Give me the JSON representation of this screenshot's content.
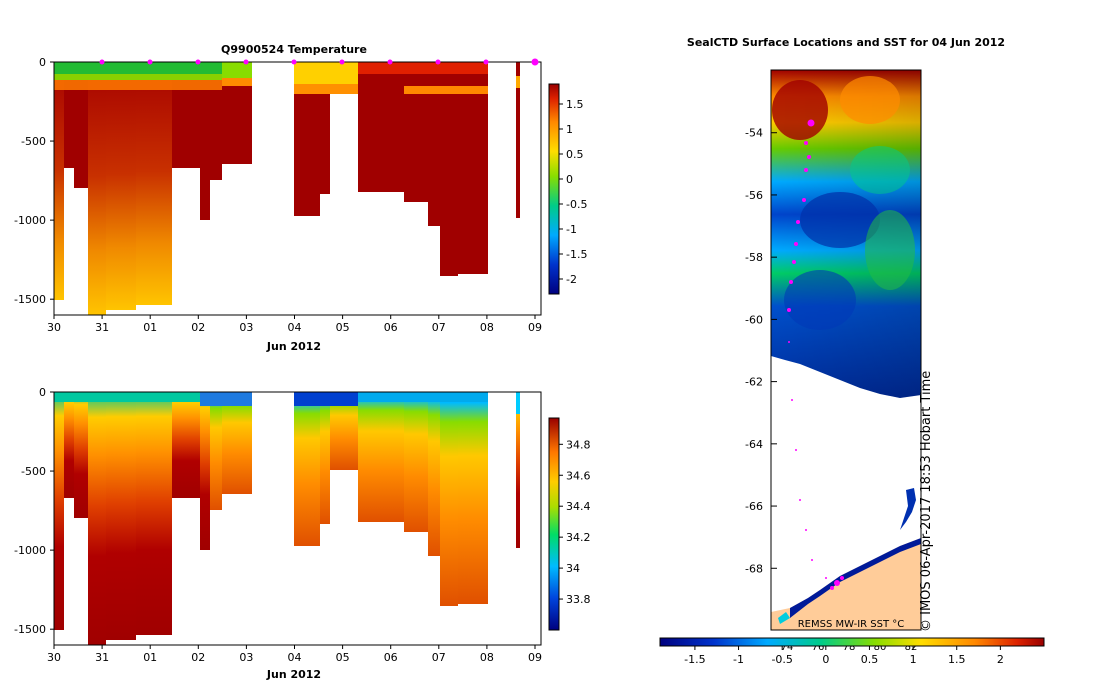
{
  "chart_data": [
    {
      "type": "heatmap",
      "title": "Q9900524  Temperature",
      "xlabel": "Jun 2012",
      "x_ticks": [
        "30",
        "31",
        "01",
        "02",
        "03",
        "04",
        "05",
        "06",
        "07",
        "08",
        "09"
      ],
      "y_ticks": [
        "0",
        "-500",
        "-1000",
        "-1500"
      ],
      "ylim": [
        -1600,
        0
      ],
      "colorbar_ticks": [
        "1.5",
        "1",
        "0.5",
        "0",
        "-0.5",
        "-1",
        "-1.5",
        "-2"
      ],
      "colorbar_range": [
        -2.3,
        1.9
      ],
      "profile_markers": [
        1,
        2,
        3,
        4,
        5,
        6,
        7,
        8,
        9,
        10
      ]
    },
    {
      "type": "heatmap",
      "title": "",
      "xlabel": "Jun 2012",
      "x_ticks": [
        "30",
        "31",
        "01",
        "02",
        "03",
        "04",
        "05",
        "06",
        "07",
        "08",
        "09"
      ],
      "y_ticks": [
        "0",
        "-500",
        "-1000",
        "-1500"
      ],
      "ylim": [
        -1600,
        0
      ],
      "colorbar_ticks": [
        "34.8",
        "34.6",
        "34.4",
        "34.2",
        "34",
        "33.8"
      ],
      "colorbar_range": [
        33.6,
        34.97
      ]
    },
    {
      "type": "heatmap",
      "title": "SealCTD Surface Locations and SST for 04 Jun 2012",
      "y_ticks": [
        "-54",
        "-56",
        "-58",
        "-60",
        "-62",
        "-64",
        "-66",
        "-68"
      ],
      "ylim": [
        -70,
        -52
      ],
      "x_ticks_partial": [
        "74",
        "76",
        "78",
        "80",
        "82"
      ],
      "colorbar_ticks": [
        "-1.5",
        "-1",
        "-0.5",
        "0",
        "0.5",
        "1",
        "1.5",
        "2"
      ],
      "colorbar_range": [
        -1.9,
        2.5
      ],
      "source_label": "REMSS MW-IR SST °C",
      "credit": "© IMOS 06-Apr-2017 18:53 Hobart Time"
    }
  ]
}
